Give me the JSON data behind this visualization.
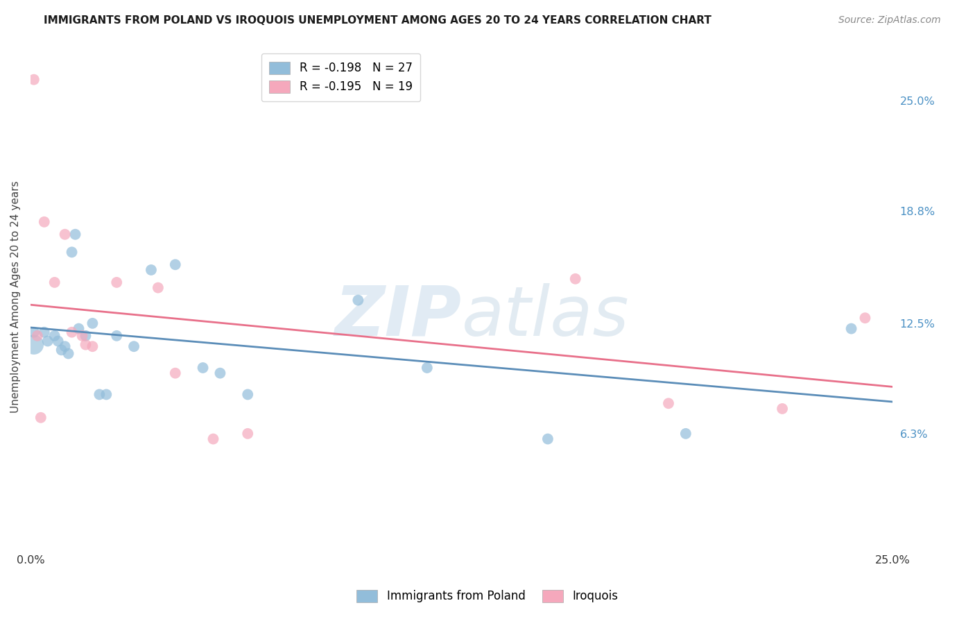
{
  "title": "IMMIGRANTS FROM POLAND VS IROQUOIS UNEMPLOYMENT AMONG AGES 20 TO 24 YEARS CORRELATION CHART",
  "source": "Source: ZipAtlas.com",
  "ylabel": "Unemployment Among Ages 20 to 24 years",
  "xlim": [
    0.0,
    0.25
  ],
  "ylim": [
    0.0,
    0.28
  ],
  "ytick_values": [
    0.063,
    0.125,
    0.188,
    0.25
  ],
  "ytick_labels": [
    "6.3%",
    "12.5%",
    "18.8%",
    "25.0%"
  ],
  "blue_scatter_x": [
    0.001,
    0.004,
    0.005,
    0.007,
    0.008,
    0.009,
    0.01,
    0.011,
    0.012,
    0.013,
    0.014,
    0.016,
    0.018,
    0.02,
    0.022,
    0.025,
    0.03,
    0.035,
    0.042,
    0.05,
    0.055,
    0.063,
    0.095,
    0.115,
    0.15,
    0.19,
    0.238
  ],
  "blue_scatter_y": [
    0.12,
    0.12,
    0.115,
    0.118,
    0.115,
    0.11,
    0.112,
    0.108,
    0.165,
    0.175,
    0.122,
    0.118,
    0.125,
    0.085,
    0.085,
    0.118,
    0.112,
    0.155,
    0.158,
    0.1,
    0.097,
    0.085,
    0.138,
    0.1,
    0.06,
    0.063,
    0.122
  ],
  "pink_scatter_x": [
    0.001,
    0.002,
    0.003,
    0.004,
    0.007,
    0.01,
    0.012,
    0.015,
    0.016,
    0.018,
    0.025,
    0.037,
    0.042,
    0.053,
    0.063,
    0.158,
    0.185,
    0.218,
    0.242
  ],
  "pink_scatter_y": [
    0.262,
    0.118,
    0.072,
    0.182,
    0.148,
    0.175,
    0.12,
    0.118,
    0.113,
    0.112,
    0.148,
    0.145,
    0.097,
    0.06,
    0.063,
    0.15,
    0.08,
    0.077,
    0.128
  ],
  "blue_label": "Immigrants from Poland",
  "pink_label": "Iroquois",
  "blue_R": -0.198,
  "blue_N": 27,
  "pink_R": -0.195,
  "pink_N": 19,
  "blue_color": "#92BDDA",
  "pink_color": "#F5A8BC",
  "blue_line_color": "#5B8DB8",
  "pink_line_color": "#E8708A",
  "background_color": "#ffffff",
  "grid_color": "#e0e0e0",
  "scatter_size": 130,
  "large_scatter_size": 420,
  "title_fontsize": 11,
  "axis_fontsize": 11,
  "tick_fontsize": 11.5
}
